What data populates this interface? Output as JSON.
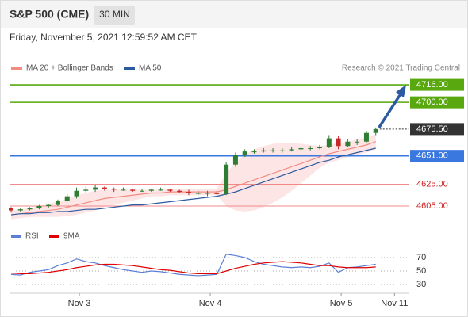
{
  "header": {
    "title": "S&P 500 (CME)",
    "interval": "30 MIN",
    "timestamp": "Friday, November 5, 2021 12:59:52 AM CET"
  },
  "chart_data": [
    {
      "type": "candlestick",
      "credit": "Research © 2021 Trading Central",
      "x": [
        0,
        1,
        2,
        3,
        4,
        5,
        6,
        7,
        8,
        9,
        10,
        11,
        12,
        13,
        14,
        15,
        16,
        17,
        18,
        19,
        20,
        21,
        22,
        23,
        24,
        25,
        26,
        27,
        28,
        29,
        30,
        31,
        32,
        33,
        34,
        35,
        36,
        37,
        38,
        39
      ],
      "open": [
        4603,
        4601,
        4602,
        4603,
        4605,
        4606,
        4610,
        4614,
        4619,
        4620,
        4622,
        4621,
        4620,
        4620,
        4619,
        4619,
        4620,
        4620,
        4619,
        4618,
        4617,
        4617,
        4617,
        4616,
        4643,
        4652,
        4655,
        4655,
        4656,
        4656,
        4656,
        4657,
        4658,
        4658,
        4659,
        4667,
        4660,
        4664,
        4664,
        4672
      ],
      "high": [
        4604,
        4603,
        4604,
        4606,
        4607,
        4611,
        4616,
        4622,
        4623,
        4624,
        4623,
        4622,
        4622,
        4621,
        4621,
        4621,
        4622,
        4621,
        4620,
        4620,
        4619,
        4619,
        4619,
        4645,
        4654,
        4657,
        4657,
        4658,
        4658,
        4658,
        4659,
        4660,
        4660,
        4661,
        4670,
        4669,
        4666,
        4666,
        4674,
        4677
      ],
      "low": [
        4599,
        4600,
        4601,
        4602,
        4603,
        4605,
        4609,
        4612,
        4617,
        4618,
        4619,
        4618,
        4619,
        4618,
        4618,
        4618,
        4619,
        4618,
        4617,
        4615,
        4615,
        4614,
        4615,
        4615,
        4641,
        4650,
        4653,
        4654,
        4654,
        4654,
        4655,
        4655,
        4656,
        4657,
        4658,
        4657,
        4659,
        4661,
        4663,
        4670
      ],
      "close": [
        4601,
        4602,
        4603,
        4605,
        4606,
        4610,
        4614,
        4619,
        4620,
        4622,
        4621,
        4620,
        4620,
        4619,
        4619,
        4620,
        4620,
        4619,
        4618,
        4617,
        4617,
        4617,
        4616,
        4643,
        4652,
        4655,
        4655,
        4656,
        4656,
        4656,
        4657,
        4658,
        4658,
        4659,
        4667,
        4660,
        4664,
        4664,
        4672,
        4675.5
      ],
      "up_color": "#2e7d32",
      "down_color": "#c62828",
      "series": [
        {
          "name": "MA 20 + Bollinger Bands",
          "color": "#f28b82",
          "values": [
            4597,
            4598,
            4599,
            4600,
            4601,
            4602,
            4604,
            4606,
            4608,
            4610,
            4612,
            4613,
            4614,
            4615,
            4616,
            4617,
            4617,
            4618,
            4618,
            4618,
            4618,
            4618,
            4618,
            4620,
            4623,
            4626,
            4629,
            4632,
            4635,
            4638,
            4641,
            4644,
            4647,
            4650,
            4653,
            4655,
            4657,
            4659,
            4661,
            4664
          ]
        },
        {
          "name": "MA 50",
          "color": "#2c5aa0",
          "values": [
            4597,
            4598,
            4598,
            4599,
            4599,
            4600,
            4600,
            4601,
            4602,
            4602,
            4603,
            4604,
            4605,
            4606,
            4606,
            4607,
            4608,
            4609,
            4610,
            4611,
            4612,
            4613,
            4614,
            4616,
            4618,
            4621,
            4624,
            4627,
            4630,
            4633,
            4636,
            4639,
            4642,
            4645,
            4647,
            4650,
            4652,
            4654,
            4656,
            4658
          ]
        }
      ],
      "bands": {
        "color": "#fbd3d3",
        "upper": [
          4601,
          4602,
          4603,
          4605,
          4607,
          4609,
          4612,
          4615,
          4617,
          4619,
          4620,
          4620,
          4620,
          4620,
          4620,
          4620,
          4620,
          4621,
          4621,
          4621,
          4621,
          4621,
          4621,
          4635,
          4645,
          4652,
          4657,
          4660,
          4662,
          4663,
          4663,
          4662,
          4661,
          4660,
          4661,
          4663,
          4664,
          4666,
          4668,
          4671
        ],
        "lower": [
          4593,
          4594,
          4595,
          4595,
          4595,
          4595,
          4596,
          4597,
          4599,
          4601,
          4604,
          4606,
          4608,
          4610,
          4612,
          4614,
          4614,
          4615,
          4615,
          4615,
          4615,
          4615,
          4615,
          4605,
          4601,
          4600,
          4601,
          4604,
          4608,
          4613,
          4619,
          4626,
          4633,
          4640,
          4645,
          4647,
          4650,
          4652,
          4654,
          4657
        ]
      },
      "levels": [
        {
          "value": 4716,
          "label": "4716.00",
          "color": "#59a80f",
          "style": "box"
        },
        {
          "value": 4700,
          "label": "4700.00",
          "color": "#59a80f",
          "style": "box"
        },
        {
          "value": 4675.5,
          "label": "4675.50",
          "color": "#333333",
          "style": "current"
        },
        {
          "value": 4651,
          "label": "4651.00",
          "color": "#3a78e0",
          "style": "box"
        },
        {
          "value": 4625,
          "label": "4625.00",
          "color": "#f08a8a",
          "style": "text"
        },
        {
          "value": 4605,
          "label": "4605.00",
          "color": "#f08a8a",
          "style": "text"
        }
      ],
      "xlim": [
        0,
        42.5
      ],
      "ylim": [
        4590,
        4730
      ],
      "xticks": [
        {
          "value": 7.3,
          "label": "Nov 3"
        },
        {
          "value": 21.3,
          "label": "Nov 4"
        },
        {
          "value": 35.3,
          "label": "Nov 5"
        },
        {
          "value": 41,
          "label": "Nov 11"
        }
      ]
    },
    {
      "type": "line",
      "x": [
        0,
        1,
        2,
        3,
        4,
        5,
        6,
        7,
        8,
        9,
        10,
        11,
        12,
        13,
        14,
        15,
        16,
        17,
        18,
        19,
        20,
        21,
        22,
        23,
        24,
        25,
        26,
        27,
        28,
        29,
        30,
        31,
        32,
        33,
        34,
        35,
        36,
        37,
        38,
        39
      ],
      "series": [
        {
          "name": "RSI",
          "color": "#5b7fd6",
          "values": [
            45,
            44,
            48,
            50,
            52,
            58,
            62,
            68,
            64,
            62,
            58,
            55,
            52,
            50,
            48,
            50,
            49,
            47,
            45,
            44,
            43,
            44,
            45,
            75,
            73,
            70,
            64,
            60,
            58,
            56,
            55,
            56,
            55,
            57,
            62,
            48,
            55,
            56,
            58,
            60
          ]
        },
        {
          "name": "9MA",
          "color": "#e00000",
          "values": [
            47,
            46,
            46,
            47,
            48,
            50,
            52,
            55,
            57,
            59,
            60,
            60,
            59,
            58,
            56,
            54,
            52,
            51,
            49,
            47,
            46,
            46,
            46,
            50,
            54,
            57,
            60,
            62,
            63,
            64,
            63,
            62,
            60,
            58,
            58,
            56,
            55,
            55,
            55,
            56
          ]
        }
      ],
      "xlim": [
        0,
        42.5
      ],
      "ylim": [
        20,
        85
      ],
      "yticks": [
        30,
        50,
        70
      ],
      "grid": true
    }
  ]
}
